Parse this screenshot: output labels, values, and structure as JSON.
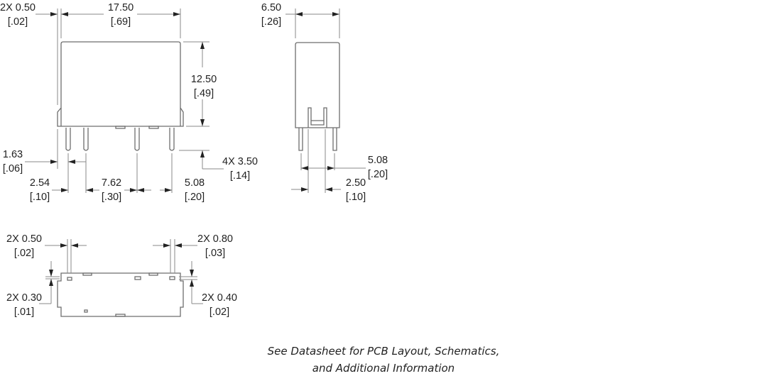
{
  "front_view": {
    "pin_width": {
      "mm": "2X 0.50",
      "in": "[.02]"
    },
    "length": {
      "mm": "17.50",
      "in": "[.69]"
    },
    "height": {
      "mm": "12.50",
      "in": "[.49]"
    },
    "pin_offset": {
      "mm": "1.63",
      "in": "[.06]"
    },
    "pin_length": {
      "mm": "4X 3.50",
      "in": "[.14]"
    },
    "pitch_a": {
      "mm": "2.54",
      "in": "[.10]"
    },
    "pitch_b": {
      "mm": "7.62",
      "in": "[.30]"
    },
    "pitch_c": {
      "mm": "5.08",
      "in": "[.20]"
    }
  },
  "side_view": {
    "width": {
      "mm": "6.50",
      "in": "[.26]"
    },
    "pin_spacing": {
      "mm": "5.08",
      "in": "[.20]"
    },
    "pin_offset": {
      "mm": "2.50",
      "in": "[.10]"
    }
  },
  "bottom_view": {
    "pin_a": {
      "mm": "2X 0.50",
      "in": "[.02]"
    },
    "pin_b": {
      "mm": "2X 0.80",
      "in": "[.03]"
    },
    "thick_a": {
      "mm": "2X 0.30",
      "in": "[.01]"
    },
    "thick_b": {
      "mm": "2X 0.40",
      "in": "[.02]"
    }
  },
  "caption": {
    "line1": "See Datasheet for PCB Layout, Schematics,",
    "line2": "and Additional Information"
  }
}
